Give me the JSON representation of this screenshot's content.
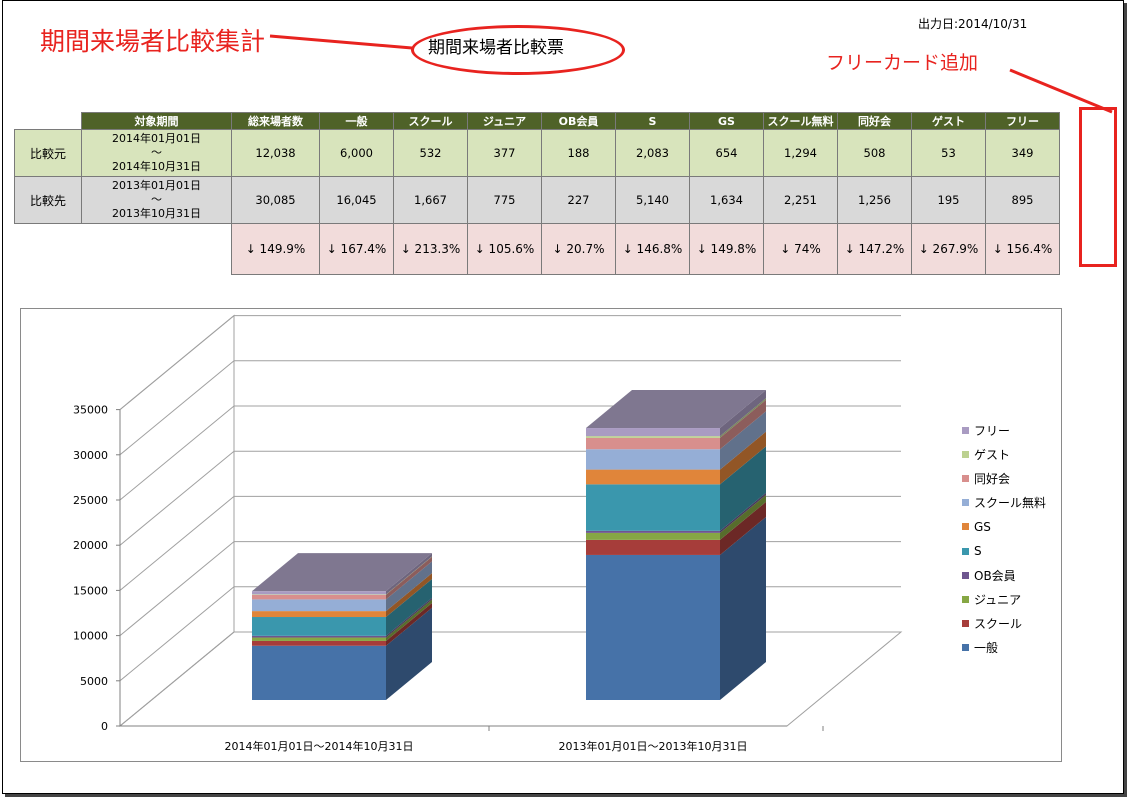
{
  "annotations": {
    "title_note": "期間来場者比較集計",
    "add_note": "フリーカード追加",
    "red_color": "#e8231f"
  },
  "report": {
    "title": "期間来場者比較票",
    "output_date": "出力日:2014/10/31"
  },
  "table": {
    "headers": [
      "対象期間",
      "総来場者数",
      "一般",
      "スクール",
      "ジュニア",
      "OB会員",
      "S",
      "GS",
      "スクール無料",
      "同好会",
      "ゲスト",
      "フリー"
    ],
    "rows": [
      {
        "label": "比較元",
        "period_from": "2014年01月01日",
        "tilde": "～",
        "period_to": "2014年10月31日",
        "values": [
          "12,038",
          "6,000",
          "532",
          "377",
          "188",
          "2,083",
          "654",
          "1,294",
          "508",
          "53",
          "349"
        ]
      },
      {
        "label": "比較先",
        "period_from": "2013年01月01日",
        "tilde": "～",
        "period_to": "2013年10月31日",
        "values": [
          "30,085",
          "16,045",
          "1,667",
          "775",
          "227",
          "5,140",
          "1,634",
          "2,251",
          "1,256",
          "195",
          "895"
        ]
      }
    ],
    "percent_row": [
      "↓ 149.9%",
      "↓ 167.4%",
      "↓ 213.3%",
      "↓ 105.6%",
      "↓ 20.7%",
      "↓ 146.8%",
      "↓ 149.8%",
      "↓ 74%",
      "↓ 147.2%",
      "↓ 267.9%",
      "↓ 156.4%"
    ]
  },
  "chart_data": {
    "type": "bar",
    "stacked": true,
    "three_d": true,
    "categories": [
      "2014年01月01日～2014年10月31日",
      "2013年01月01日～2013年10月31日"
    ],
    "series": [
      {
        "name": "一般",
        "values": [
          6000,
          16045
        ],
        "color": "#4672a8"
      },
      {
        "name": "スクール",
        "values": [
          532,
          1667
        ],
        "color": "#a63d3a"
      },
      {
        "name": "ジュニア",
        "values": [
          377,
          775
        ],
        "color": "#86a744"
      },
      {
        "name": "OB会員",
        "values": [
          188,
          227
        ],
        "color": "#6e568f"
      },
      {
        "name": "S",
        "values": [
          2083,
          5140
        ],
        "color": "#3a97ad"
      },
      {
        "name": "GS",
        "values": [
          654,
          1634
        ],
        "color": "#e0853a"
      },
      {
        "name": "スクール無料",
        "values": [
          1294,
          2251
        ],
        "color": "#95aed6"
      },
      {
        "name": "同好会",
        "values": [
          508,
          1256
        ],
        "color": "#d88f8d"
      },
      {
        "name": "ゲスト",
        "values": [
          53,
          195
        ],
        "color": "#bcd190"
      },
      {
        "name": "フリー",
        "values": [
          349,
          895
        ],
        "color": "#a99bc2"
      }
    ],
    "yticks": [
      "0",
      "5000",
      "10000",
      "15000",
      "20000",
      "25000",
      "30000",
      "35000"
    ],
    "ylim": [
      0,
      35000
    ],
    "grid": true,
    "legend_position": "right",
    "top_face_color": "#7f7790"
  }
}
